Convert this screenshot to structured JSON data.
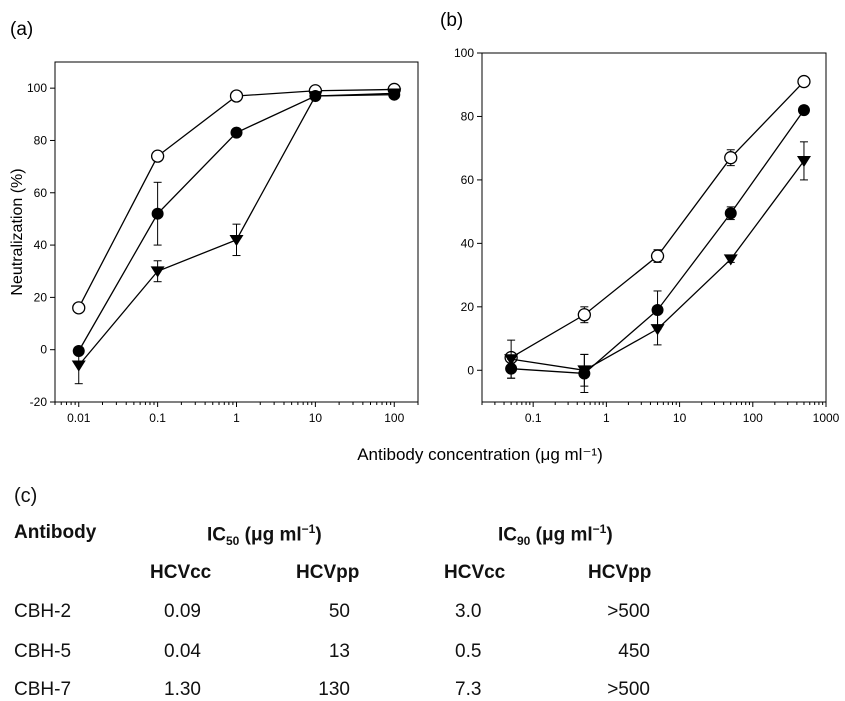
{
  "chart_data": [
    {
      "type": "line",
      "panel_label": "(a)",
      "ylabel": "Neutralization (%)",
      "xscale": "log",
      "xlim": [
        0.005,
        200
      ],
      "ylim": [
        -20,
        110
      ],
      "x_ticks": [
        "0.01",
        "0.1",
        "1",
        "10",
        "100"
      ],
      "y_ticks": [
        "-20",
        "0",
        "20",
        "40",
        "60",
        "80",
        "100"
      ],
      "series": [
        {
          "marker": "open-circle",
          "x": [
            0.01,
            0.1,
            1,
            10,
            100
          ],
          "y": [
            16,
            74,
            97,
            99,
            99.5
          ],
          "err": [
            0,
            0,
            0,
            0,
            0
          ]
        },
        {
          "marker": "filled-circle",
          "x": [
            0.01,
            0.1,
            1,
            10,
            100
          ],
          "y": [
            -0.5,
            52,
            83,
            97,
            97.5
          ],
          "err": [
            0,
            12,
            0,
            0,
            0
          ]
        },
        {
          "marker": "filled-triangle-down",
          "x": [
            0.01,
            0.1,
            1,
            10,
            100
          ],
          "y": [
            -6,
            30,
            42,
            97,
            98
          ],
          "err": [
            7,
            4,
            6,
            0,
            0
          ]
        }
      ]
    },
    {
      "type": "line",
      "panel_label": "(b)",
      "xscale": "log",
      "xlim": [
        0.02,
        1000
      ],
      "ylim": [
        -10,
        100
      ],
      "x_ticks": [
        "0.1",
        "1",
        "10",
        "100",
        "1000"
      ],
      "y_ticks": [
        "0",
        "20",
        "40",
        "60",
        "80",
        "100"
      ],
      "series": [
        {
          "marker": "open-circle",
          "x": [
            0.05,
            0.5,
            5,
            50,
            500
          ],
          "y": [
            4,
            17.5,
            36,
            67,
            91
          ],
          "err": [
            0,
            2.5,
            2,
            2.5,
            0
          ]
        },
        {
          "marker": "filled-circle",
          "x": [
            0.05,
            0.5,
            5,
            50,
            500
          ],
          "y": [
            0.5,
            -1,
            19,
            49.5,
            82
          ],
          "err": [
            3,
            6,
            6,
            2,
            0
          ]
        },
        {
          "marker": "filled-triangle-down",
          "x": [
            0.05,
            0.5,
            5,
            50,
            500
          ],
          "y": [
            3.5,
            0,
            13,
            35,
            66
          ],
          "err": [
            6,
            5,
            5,
            1,
            6
          ]
        }
      ]
    }
  ],
  "shared_xlabel": "Antibody concentration (μg ml⁻¹)",
  "table": {
    "panel_label": "(c)",
    "h_antibody": "Antibody",
    "h_ic50": "IC",
    "h_ic50_sub": "50",
    "h_ic90": "IC",
    "h_ic90_sub": "90",
    "h_units_pre": " (μg ml",
    "h_units_sup": "−1",
    "h_units_post": ")",
    "sub_hcvcc": "HCVcc",
    "sub_hcvpp": "HCVpp",
    "sub_hcvcc2": "HCVcc",
    "sub_hcvpp2": "HCVpp",
    "rows": [
      {
        "name": "CBH-2",
        "ic50_cc": "0.09",
        "ic50_pp": "50",
        "ic90_cc": "3.0",
        "ic90_pp": ">500"
      },
      {
        "name": "CBH-5",
        "ic50_cc": "0.04",
        "ic50_pp": "13",
        "ic90_cc": "0.5",
        "ic90_pp": "450"
      },
      {
        "name": "CBH-7",
        "ic50_cc": "1.30",
        "ic50_pp": "130",
        "ic90_cc": "7.3",
        "ic90_pp": ">500"
      }
    ]
  }
}
